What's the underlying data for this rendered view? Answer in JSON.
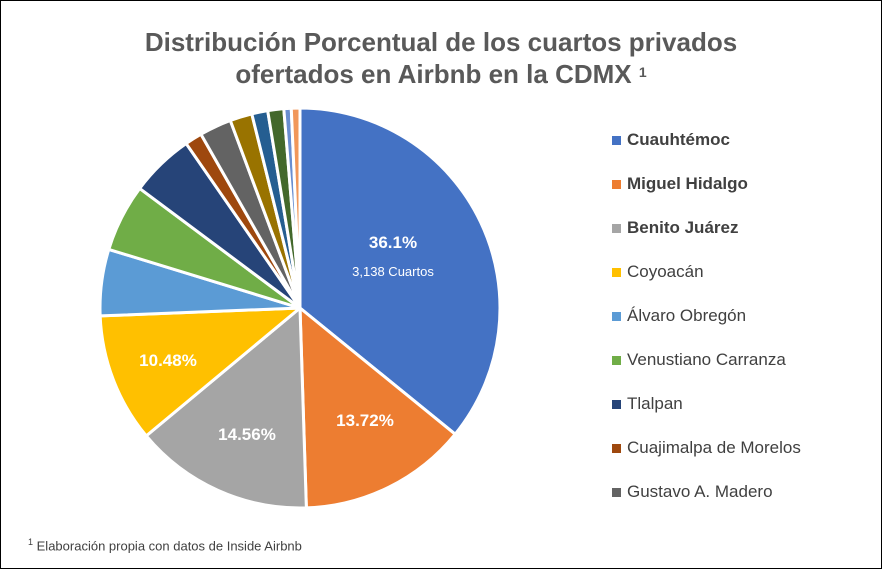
{
  "chart_data": {
    "type": "pie",
    "title_line1": "Distribución Porcentual de los cuartos privados",
    "title_line2": "ofertados en  Airbnb en la CDMX",
    "title_sup": "1",
    "slices": [
      {
        "name": "Cuauhtémoc",
        "value": 36.1,
        "label": "36.1%",
        "sublabel": "3,138 Cuartos",
        "color": "#4472C4",
        "bold": true
      },
      {
        "name": "Miguel Hidalgo",
        "value": 13.72,
        "label": "13.72%",
        "color": "#ED7D31",
        "bold": true
      },
      {
        "name": "Benito Juárez",
        "value": 14.56,
        "label": "14.56%",
        "color": "#A5A5A5",
        "bold": true
      },
      {
        "name": "Coyoacán",
        "value": 10.48,
        "label": "10.48%",
        "color": "#FFC000"
      },
      {
        "name": "Álvaro Obregón",
        "value": 5.4,
        "color": "#5B9BD5"
      },
      {
        "name": "Venustiano Carranza",
        "value": 5.5,
        "color": "#70AD47"
      },
      {
        "name": "Tlalpan",
        "value": 5.2,
        "color": "#264478"
      },
      {
        "name": "Cuajimalpa de Morelos",
        "value": 1.4,
        "color": "#9E480E"
      },
      {
        "name": "Gustavo A. Madero",
        "value": 2.6,
        "color": "#636363"
      },
      {
        "value": 1.8,
        "color": "#997300"
      },
      {
        "value": 1.3,
        "color": "#255E91"
      },
      {
        "value": 1.3,
        "color": "#43682B"
      },
      {
        "value": 0.6,
        "color": "#698ED0"
      },
      {
        "value": 0.7,
        "color": "#F1975A"
      }
    ]
  },
  "footnote": {
    "sup": "1",
    "text": "Elaboración propia con datos de Inside Airbnb"
  }
}
